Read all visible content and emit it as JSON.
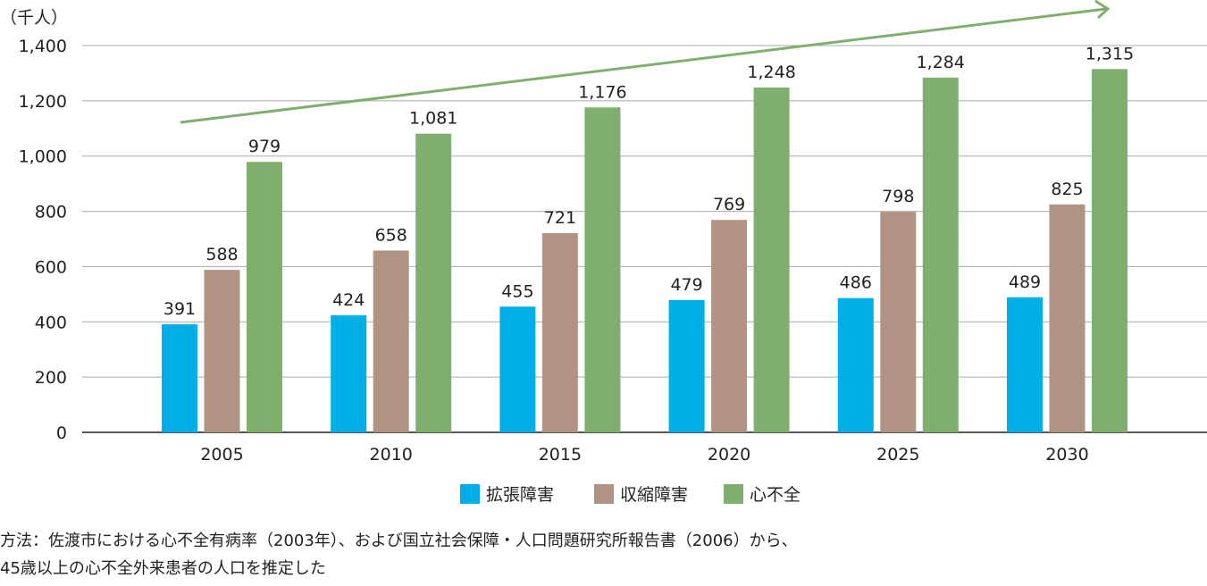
{
  "chart_data": {
    "type": "bar",
    "unit_label": "（千人）",
    "categories": [
      "2005",
      "2010",
      "2015",
      "2020",
      "2025",
      "2030"
    ],
    "series": [
      {
        "name": "拡張障害",
        "color": "#00aee8",
        "values": [
          391,
          424,
          455,
          479,
          486,
          489
        ]
      },
      {
        "name": "収縮障害",
        "color": "#b09383",
        "values": [
          588,
          658,
          721,
          769,
          798,
          825
        ]
      },
      {
        "name": "心不全",
        "color": "#7faf6e",
        "values": [
          979,
          1081,
          1176,
          1248,
          1284,
          1315
        ]
      }
    ],
    "ylim": [
      0,
      1400
    ],
    "yticks": [
      0,
      200,
      400,
      600,
      800,
      1000,
      1200,
      1400
    ],
    "ytick_labels": [
      "0",
      "200",
      "400",
      "600",
      "800",
      "1,000",
      "1,200",
      "1,400"
    ],
    "grid": true,
    "legend_position": "bottom-center",
    "trend_arrow_color": "#7faf6e"
  },
  "notes": {
    "line1": "方法：佐渡市における心不全有病率（2003年）、および国立社会保障・人口問題研究所報告書（2006）から、",
    "line2": "45歳以上の心不全外来患者の人口を推定した"
  }
}
